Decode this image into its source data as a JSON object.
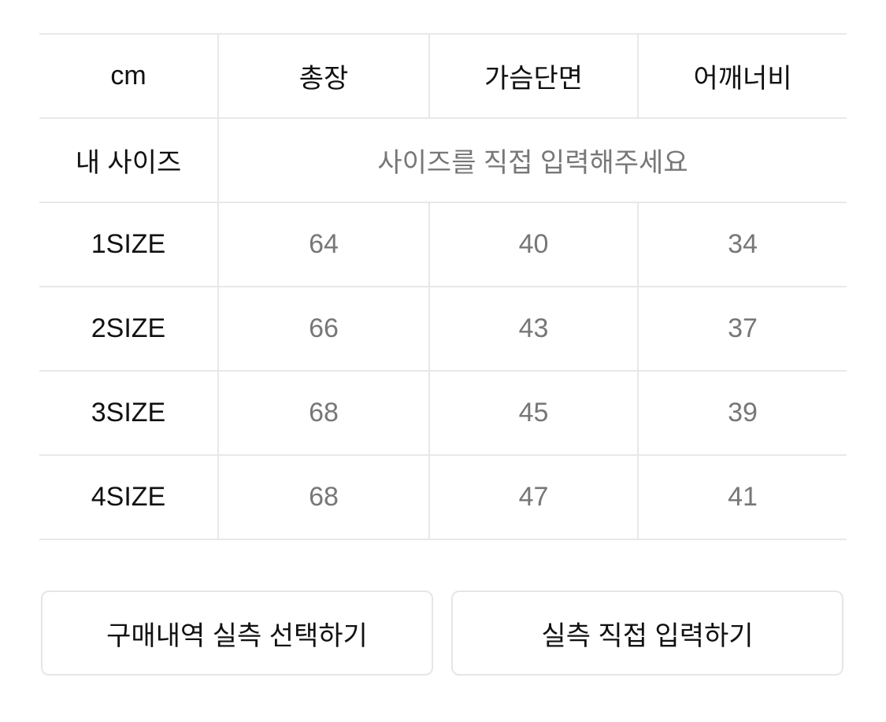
{
  "header": {
    "unit": "cm",
    "columns": [
      "총장",
      "가슴단면",
      "어깨너비"
    ]
  },
  "my_size": {
    "label": "내 사이즈",
    "placeholder": "사이즈를 직접 입력해주세요"
  },
  "rows": [
    {
      "size": "1SIZE",
      "values": [
        "64",
        "40",
        "34"
      ]
    },
    {
      "size": "2SIZE",
      "values": [
        "66",
        "43",
        "37"
      ]
    },
    {
      "size": "3SIZE",
      "values": [
        "68",
        "45",
        "39"
      ]
    },
    {
      "size": "4SIZE",
      "values": [
        "68",
        "47",
        "41"
      ]
    }
  ],
  "buttons": {
    "select_history": "구매내역 실측 선택하기",
    "direct_input": "실측 직접 입력하기"
  }
}
